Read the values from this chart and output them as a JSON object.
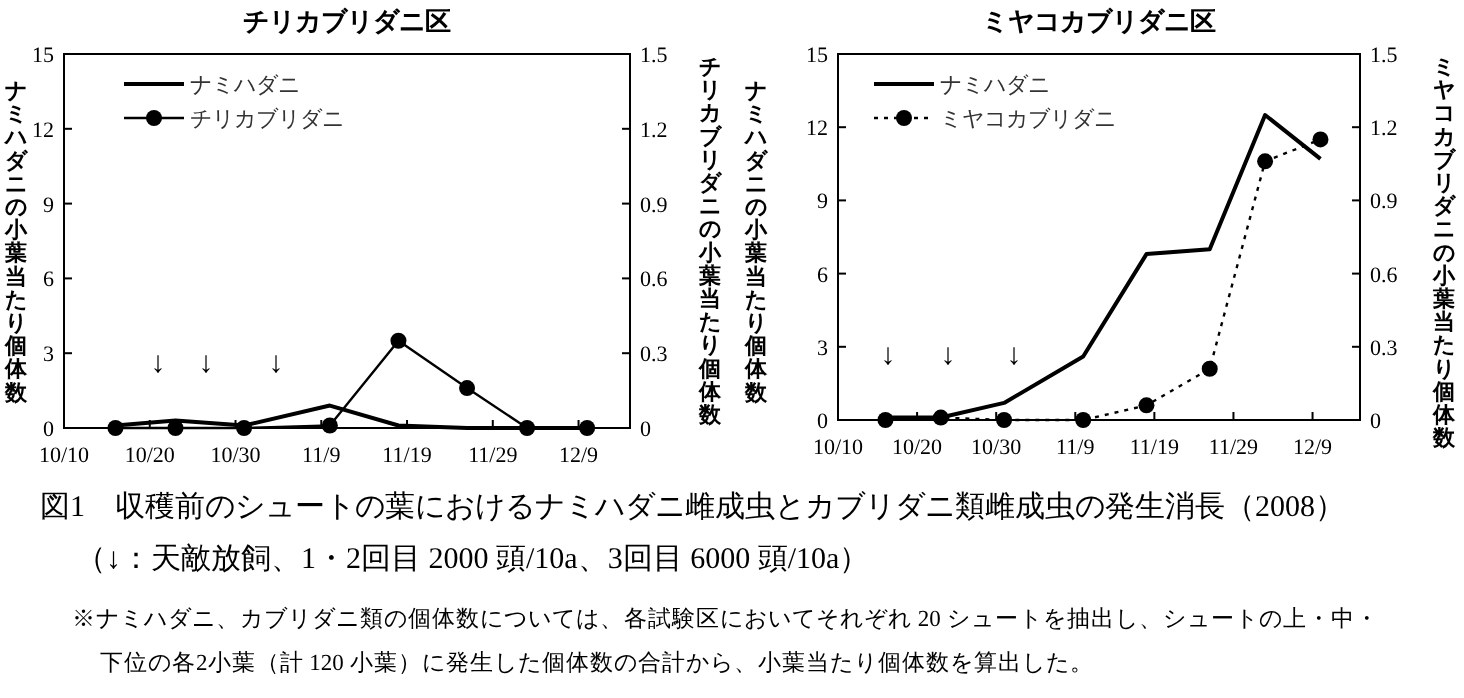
{
  "chart_data": [
    {
      "type": "line",
      "title": "チリカブリダニ区",
      "ylabel": "ナミハダニの小葉当たり個体数",
      "y2label": "チリカブリダニの小葉当たり個体数",
      "x": [
        "--10-16",
        "--10-23",
        "--10-31",
        "--11-10",
        "--11-18",
        "--11-26",
        "--12-03",
        "--12-10"
      ],
      "xlim": [
        "--10-10",
        "--12-15"
      ],
      "xticks": [
        {
          "value": "--10-10",
          "label": "10/10"
        },
        {
          "value": "--10-20",
          "label": "10/20"
        },
        {
          "value": "--10-30",
          "label": "10/30"
        },
        {
          "value": "--11-09",
          "label": "11/9"
        },
        {
          "value": "--11-19",
          "label": "11/19"
        },
        {
          "value": "--11-29",
          "label": "11/29"
        },
        {
          "value": "--12-09",
          "label": "12/9"
        }
      ],
      "ylim": [
        0,
        15
      ],
      "yticks": [
        0,
        3,
        6,
        9,
        12,
        15
      ],
      "y2lim": [
        0,
        1.5
      ],
      "y2ticks": [
        0,
        0.3,
        0.6,
        0.9,
        1.2,
        1.5
      ],
      "legend": "top left",
      "series": [
        {
          "name": "ナミハダニ",
          "color": "#000000",
          "values": [
            0.1,
            0.3,
            0.1,
            0.9,
            0.1,
            0,
            0,
            0
          ],
          "marker": "none",
          "line_style": "solid"
        },
        {
          "name": "チリカブリダニ",
          "color": "#000000",
          "values": [
            0,
            0,
            0,
            0.01,
            0.35,
            0.16,
            0,
            0
          ],
          "axis": "y2",
          "marker": "circle",
          "line_style": "solid"
        }
      ],
      "annotations": [
        "↓",
        "↓",
        "↓",
        "図1　収穫前のシュートの葉におけるナミハダニ雌成虫とカブリダニ類雌成虫の発生消長（2008）",
        "（↓：天敵放飼、1・2回目 2000 頭/10a、3回目 6000 頭/10a）",
        "※ナミハダニ、カブリダニ類の個体数については、各試験区においてそれぞれ 20 シュートを抽出し、シュートの上・中・下位の各2小葉（計 120 小葉）に発生した個体数の合計から、小葉当たり個体数を算出した。"
      ]
    },
    {
      "type": "line",
      "title": "ミヤコカブリダニ区",
      "ylabel": "ナミハダニの小葉当たり個体数",
      "y2label": "ミヤコカブリダニの小葉当たり個体数",
      "x": [
        "--10-16",
        "--10-23",
        "--10-31",
        "--11-10",
        "--11-18",
        "--11-26",
        "--12-03",
        "--12-10"
      ],
      "xlim": [
        "--10-10",
        "--12-15"
      ],
      "xticks": [
        {
          "value": "--10-10",
          "label": "10/10"
        },
        {
          "value": "--10-20",
          "label": "10/20"
        },
        {
          "value": "--10-30",
          "label": "10/30"
        },
        {
          "value": "--11-09",
          "label": "11/9"
        },
        {
          "value": "--11-19",
          "label": "11/19"
        },
        {
          "value": "--11-29",
          "label": "11/29"
        },
        {
          "value": "--12-09",
          "label": "12/9"
        }
      ],
      "ylim": [
        0,
        15
      ],
      "yticks": [
        0,
        3,
        6,
        9,
        12,
        15
      ],
      "y2lim": [
        0,
        1.5
      ],
      "y2ticks": [
        0,
        0.3,
        0.6,
        0.9,
        1.2,
        1.5
      ],
      "legend": "top left",
      "series": [
        {
          "name": "ナミハダニ",
          "color": "#000000",
          "values": [
            0.1,
            0.1,
            0.7,
            2.6,
            6.8,
            7.0,
            12.5,
            10.7
          ],
          "marker": "none",
          "line_style": "solid"
        },
        {
          "name": "ミヤコカブリダニ",
          "color": "#000000",
          "values": [
            0,
            0.01,
            0,
            0,
            0.06,
            0.21,
            1.06,
            1.15
          ],
          "axis": "y2",
          "marker": "circle",
          "line_style": "dotted"
        }
      ],
      "annotations": [
        "↓",
        "↓",
        "↓"
      ]
    }
  ]
}
